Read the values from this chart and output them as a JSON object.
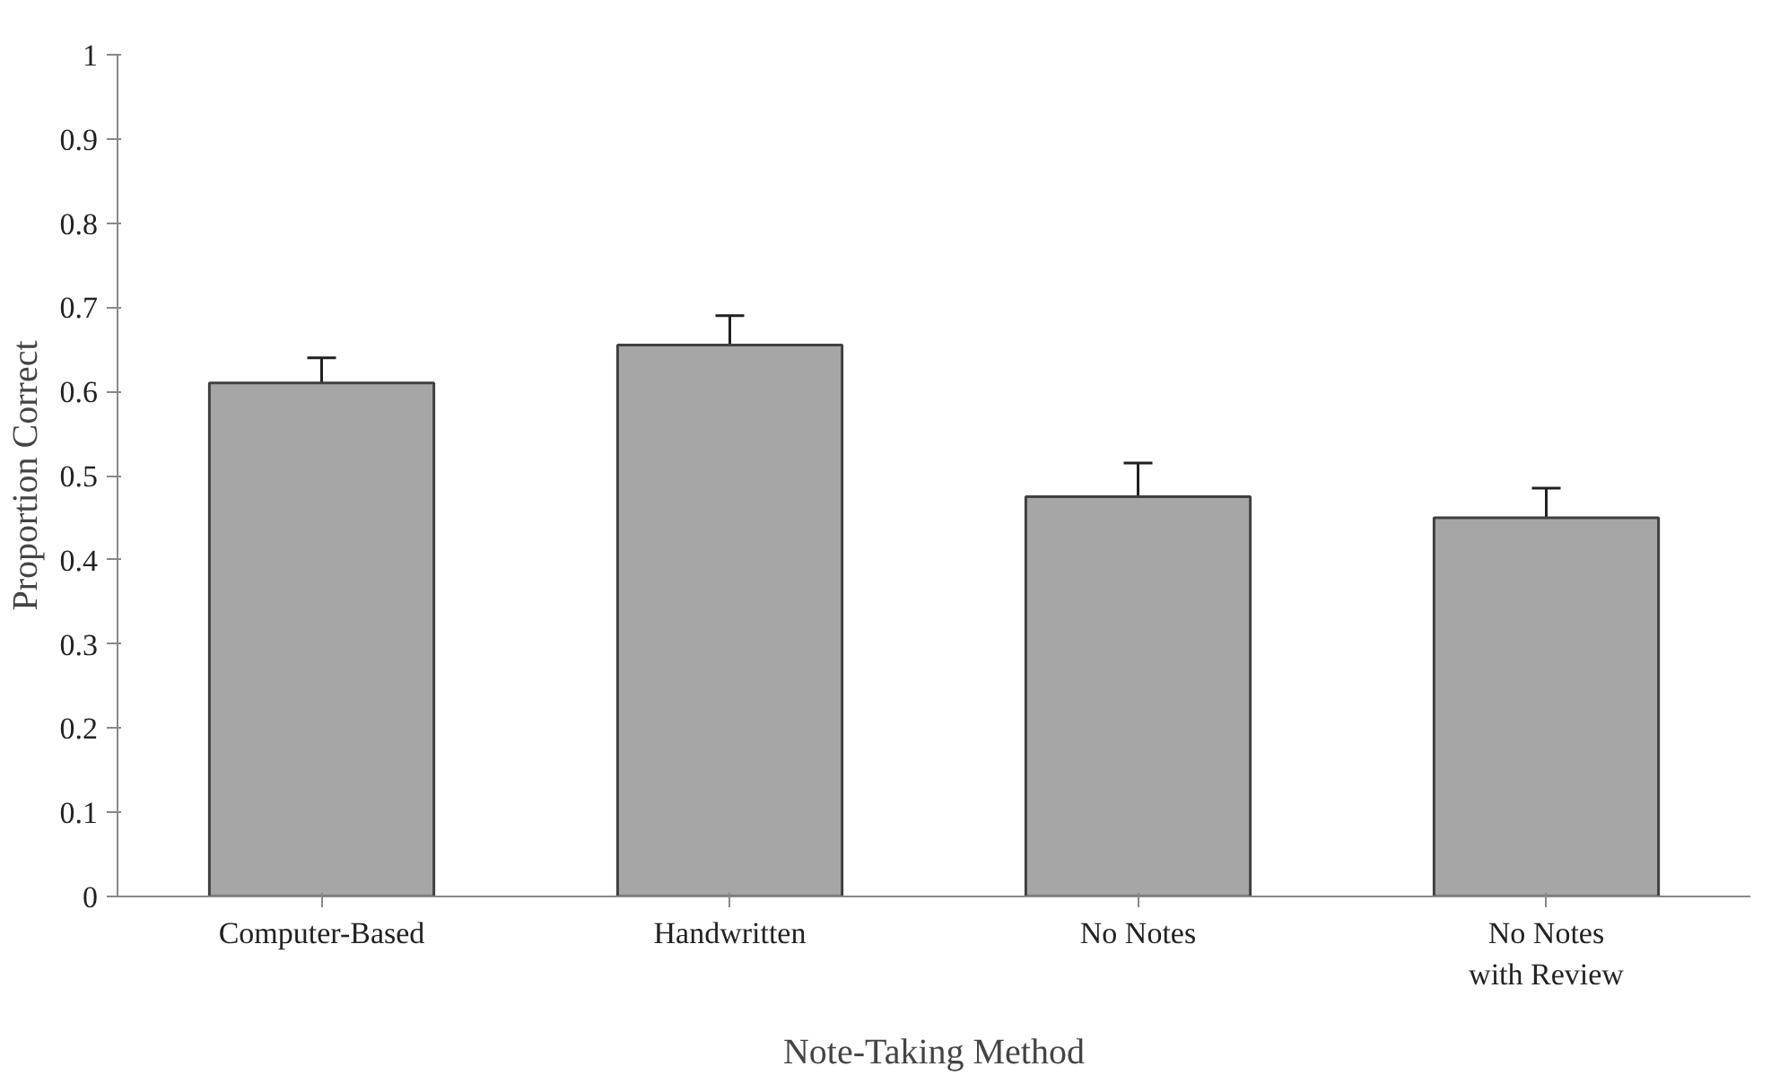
{
  "chart_data": {
    "type": "bar",
    "xlabel": "Note-Taking Method",
    "ylabel": "Proportion Correct",
    "categories": [
      "Computer-Based",
      "Handwritten",
      "No Notes",
      "No Notes with Review"
    ],
    "values": [
      0.61,
      0.655,
      0.475,
      0.45
    ],
    "errors": [
      [
        0.61,
        0.64
      ],
      [
        0.655,
        0.69
      ],
      [
        0.475,
        0.515
      ],
      [
        0.45,
        0.485
      ]
    ],
    "color": "#a6a6a6",
    "ylim": [
      0,
      1
    ],
    "yticks": [
      0,
      0.1,
      0.2,
      0.3,
      0.4,
      0.5,
      0.6,
      0.7,
      0.8,
      0.9,
      1
    ],
    "grid": false
  }
}
